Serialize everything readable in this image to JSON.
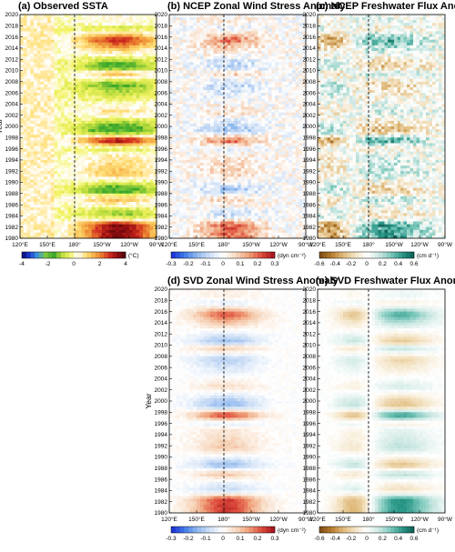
{
  "colors": {
    "sst_scale": [
      "#08086b",
      "#1c3cd6",
      "#3c9bd8",
      "#7cc93c",
      "#38a52a",
      "#b9dc3c",
      "#f2f260",
      "#ffffff",
      "#ffe07a",
      "#f5b24a",
      "#e8792e",
      "#cf2a1f",
      "#8e0d10",
      "#4d0606"
    ],
    "tau_scale": [
      "#1a2bd1",
      "#3f78e8",
      "#8fb8ee",
      "#cfe0f6",
      "#ffffff",
      "#f7d9c0",
      "#ef9f78",
      "#dd4a3a",
      "#9e0f1d"
    ],
    "flux_scale": [
      "#7a4a14",
      "#b57b2e",
      "#dfb878",
      "#f3e2c2",
      "#ffffff",
      "#cde8e3",
      "#7ec9bd",
      "#2a9788",
      "#0b5d52"
    ]
  },
  "chart_data": [
    {
      "type": "heatmap",
      "title": "(a) Observed SSTA",
      "ylabel": "Year",
      "xticks": [
        "120°E",
        "150°E",
        "180°",
        "150°W",
        "120°W",
        "90°W"
      ],
      "yticks": [
        "1980",
        "1982",
        "1984",
        "1986",
        "1988",
        "1990",
        "1992",
        "1994",
        "1996",
        "1998",
        "2000",
        "2002",
        "2004",
        "2006",
        "2008",
        "2010",
        "2012",
        "2014",
        "2016",
        "2018",
        "2020"
      ],
      "ylim": [
        1980,
        2020
      ],
      "xlim": [
        120,
        270
      ],
      "colorbar": {
        "ticks": [
          "-4",
          "-2",
          "0",
          "2",
          "4"
        ],
        "unit": "(°C)",
        "range": [
          -4,
          4
        ]
      },
      "dashed_line_at": 180,
      "anomaly_index": [
        [
          1982.5,
          3.5
        ],
        [
          1983,
          1.5
        ],
        [
          1984,
          -1.2
        ],
        [
          1985,
          -0.8
        ],
        [
          1987,
          1.6
        ],
        [
          1988.5,
          -2.2
        ],
        [
          1991.5,
          1.4
        ],
        [
          1995,
          0.6
        ],
        [
          1996,
          -0.8
        ],
        [
          1997.5,
          3.8
        ],
        [
          1999,
          -2.0
        ],
        [
          2000,
          -1.8
        ],
        [
          2002.5,
          1.0
        ],
        [
          2005,
          -0.4
        ],
        [
          2007.5,
          -1.6
        ],
        [
          2009.5,
          1.6
        ],
        [
          2010.5,
          -2.0
        ],
        [
          2011.5,
          -1.2
        ],
        [
          2015.5,
          3.2
        ],
        [
          2017.5,
          -0.8
        ],
        [
          2018.5,
          0.4
        ]
      ]
    },
    {
      "type": "heatmap",
      "title": "(b) NCEP Zonal Wind Stress Anomaly",
      "xticks": [
        "120°E",
        "150°E",
        "180°",
        "150°W",
        "120°W",
        "90°W"
      ],
      "yticks": [
        "1980",
        "1982",
        "1984",
        "1986",
        "1988",
        "1990",
        "1992",
        "1994",
        "1996",
        "1998",
        "2000",
        "2002",
        "2004",
        "2006",
        "2008",
        "2010",
        "2012",
        "2014",
        "2016",
        "2018",
        "2020"
      ],
      "ylim": [
        1980,
        2020
      ],
      "colorbar": {
        "ticks": [
          "-0.3",
          "-0.2",
          "-0.1",
          "0",
          "0.1",
          "0.2",
          "0.3"
        ],
        "unit": "(dyn cm⁻²)",
        "range": [
          -0.3,
          0.3
        ]
      },
      "dashed_line_at": 180
    },
    {
      "type": "heatmap",
      "title": "(c) NCEP Freshwater Flux Anomaly",
      "xticks": [
        "120°E",
        "150°E",
        "180°",
        "150°W",
        "120°W",
        "90°W"
      ],
      "yticks": [
        "1980",
        "1982",
        "1984",
        "1986",
        "1988",
        "1990",
        "1992",
        "1994",
        "1996",
        "1998",
        "2000",
        "2002",
        "2004",
        "2006",
        "2008",
        "2010",
        "2012",
        "2014",
        "2016",
        "2018",
        "2020"
      ],
      "ylim": [
        1980,
        2020
      ],
      "colorbar": {
        "ticks": [
          "-0.6",
          "-0.4",
          "-0.2",
          "0",
          "0.2",
          "0.4",
          "0.6"
        ],
        "unit": "(cm d⁻¹)",
        "range": [
          -0.6,
          0.6
        ]
      },
      "dashed_line_at": 180
    },
    {
      "type": "heatmap",
      "title": "(d) SVD Zonal Wind Stress Anomaly",
      "ylabel": "Year",
      "xticks": [
        "120°E",
        "150°E",
        "180°",
        "150°W",
        "120°W",
        "90°W"
      ],
      "yticks": [
        "1980",
        "1982",
        "1984",
        "1986",
        "1988",
        "1990",
        "1992",
        "1994",
        "1996",
        "1998",
        "2000",
        "2002",
        "2004",
        "2006",
        "2008",
        "2010",
        "2012",
        "2014",
        "2016",
        "2018",
        "2020"
      ],
      "ylim": [
        1980,
        2020
      ],
      "colorbar": {
        "ticks": [
          "-0.3",
          "-0.2",
          "-0.1",
          "0",
          "0.1",
          "0.2",
          "0.3"
        ],
        "unit": "(dyn cm⁻²)",
        "range": [
          -0.3,
          0.3
        ]
      },
      "dashed_line_at": 180
    },
    {
      "type": "heatmap",
      "title": "(e) SVD Freshwater Flux Anomaly",
      "xticks": [
        "120°E",
        "150°E",
        "180°",
        "150°W",
        "120°W",
        "90°W"
      ],
      "yticks": [
        "1980",
        "1982",
        "1984",
        "1986",
        "1988",
        "1990",
        "1992",
        "1994",
        "1996",
        "1998",
        "2000",
        "2002",
        "2004",
        "2006",
        "2008",
        "2010",
        "2012",
        "2014",
        "2016",
        "2018",
        "2020"
      ],
      "ylim": [
        1980,
        2020
      ],
      "colorbar": {
        "ticks": [
          "-0.6",
          "-0.4",
          "-0.2",
          "0",
          "0.2",
          "0.4",
          "0.6"
        ],
        "unit": "(cm d⁻¹)",
        "range": [
          -0.6,
          0.6
        ]
      },
      "dashed_line_at": 180
    }
  ]
}
